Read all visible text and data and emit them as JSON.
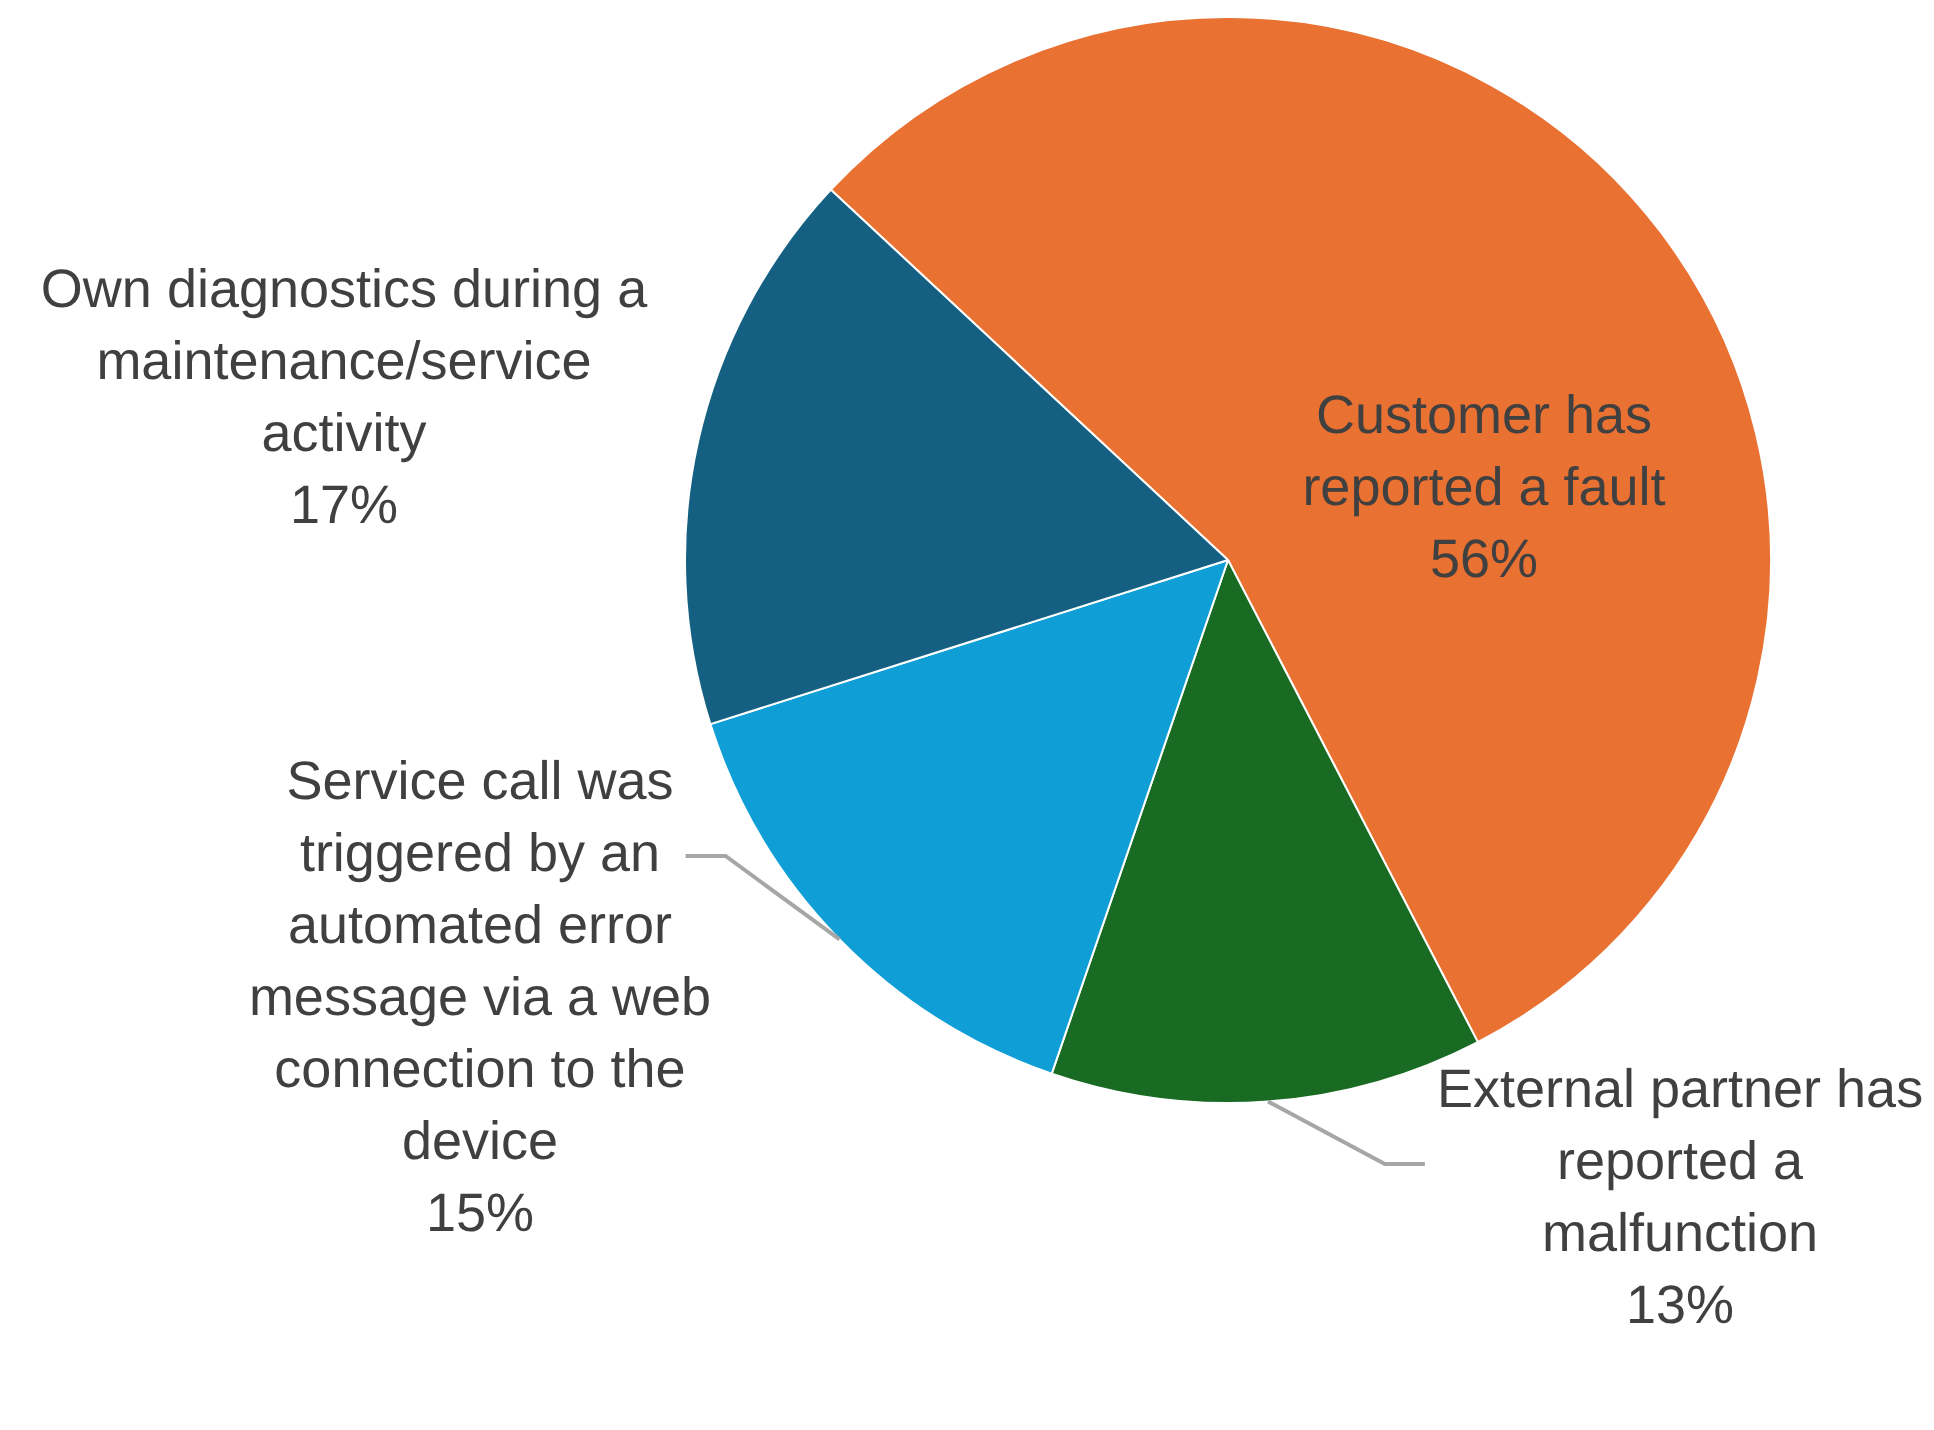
{
  "chart_data": {
    "type": "pie",
    "categories": [
      "Customer has reported a fault",
      "External partner has reported a malfunction",
      "Service call was triggered by an automated error message via a web connection to the device",
      "Own diagnostics during a maintenance/service activity"
    ],
    "values": [
      56,
      13,
      15,
      17
    ],
    "colors": [
      "#e97132",
      "#196b24",
      "#0f9ed5",
      "#156082"
    ],
    "value_labels": [
      "56%",
      "13%",
      "15%",
      "17%"
    ],
    "legend": false
  }
}
